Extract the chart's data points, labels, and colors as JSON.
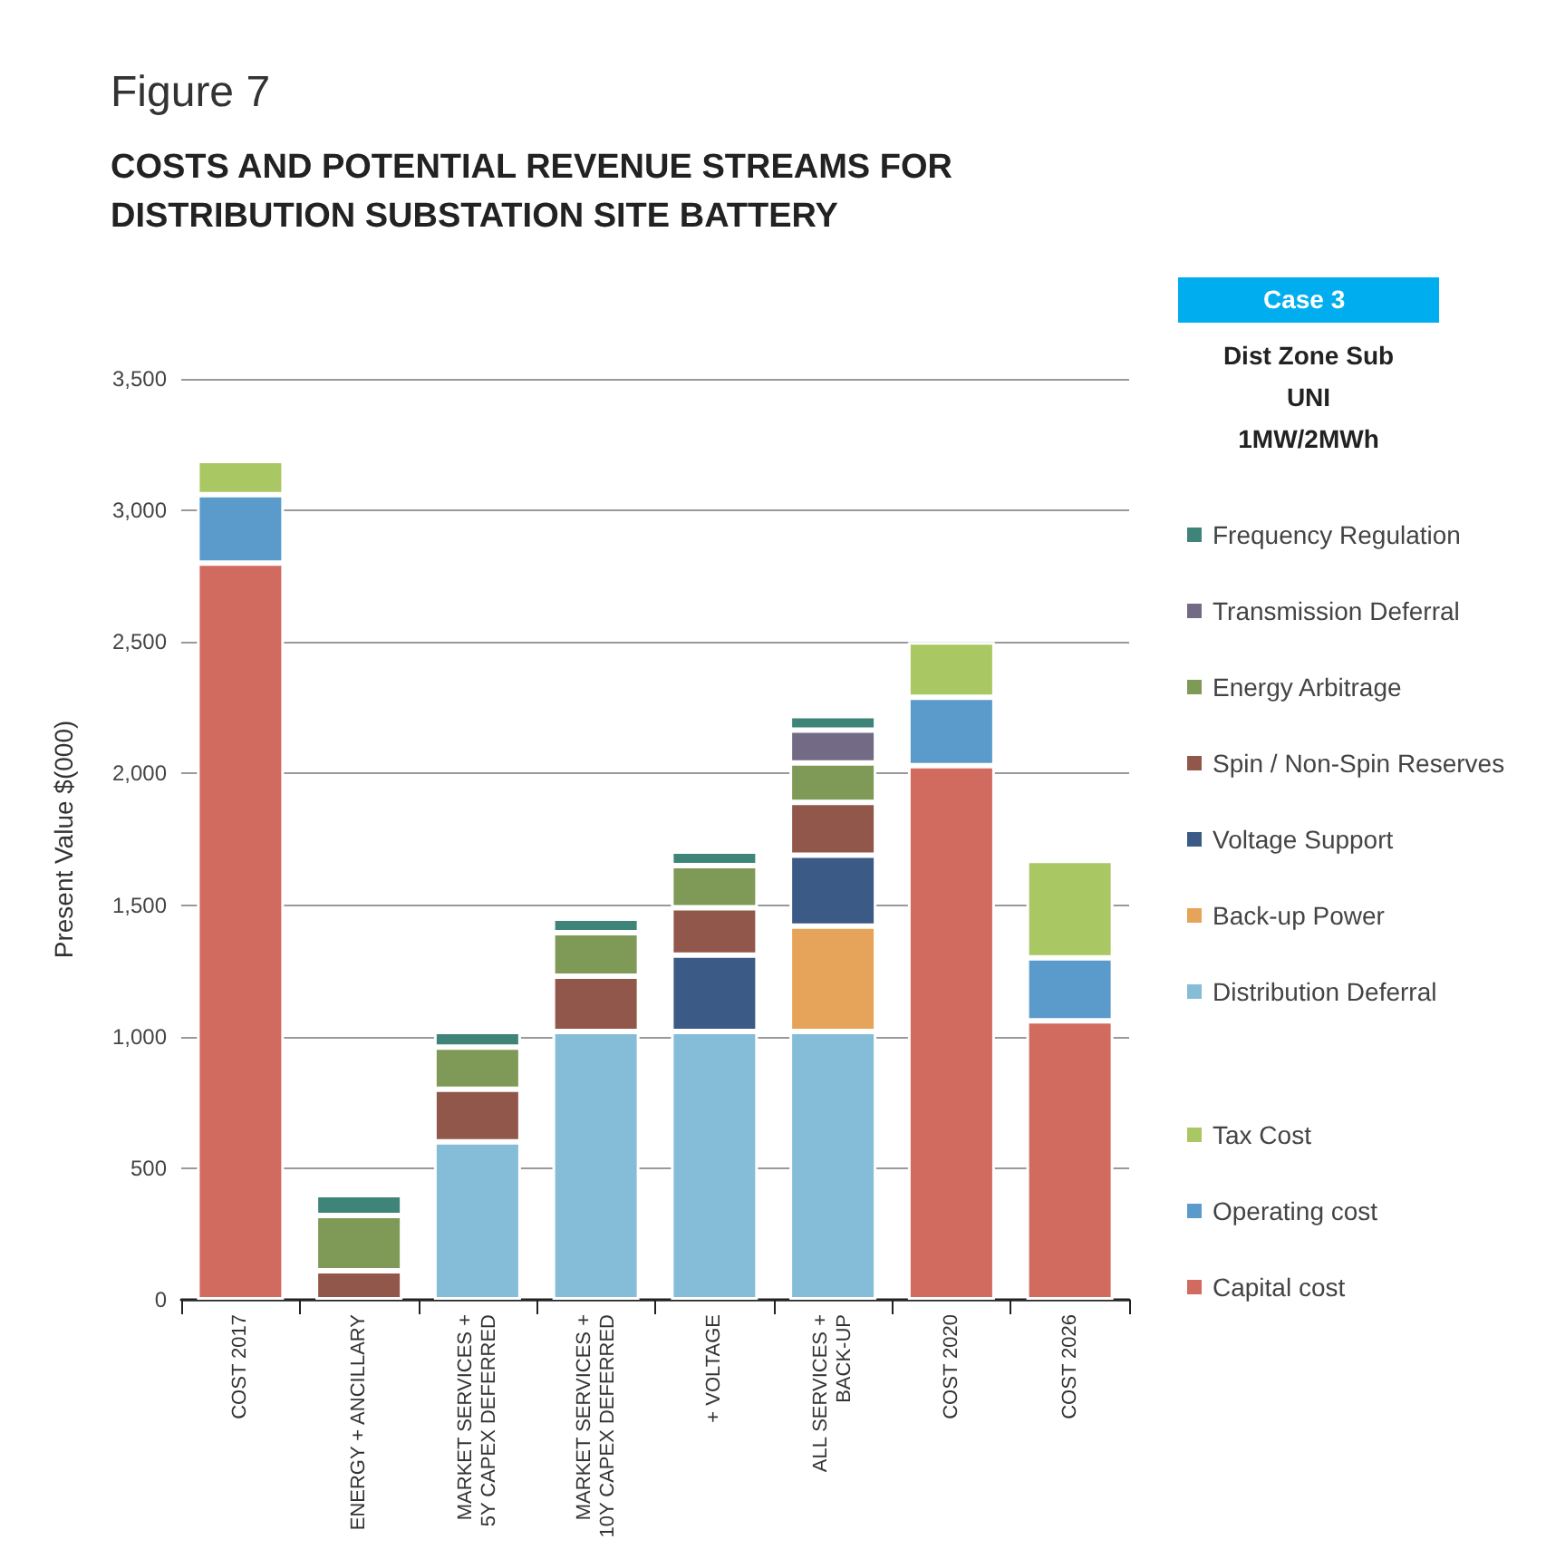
{
  "chart_data": {
    "type": "bar",
    "title": "Figure 7",
    "subtitle": "COSTS AND POTENTIAL REVENUE STREAMS FOR\nDISTRIBUTION SUBSTATION SITE BATTERY",
    "ylabel": "Present Value $(000)",
    "legend_title": "Case 3",
    "annotations": [
      "Dist Zone Sub",
      "UNI",
      "1MW/2MWh"
    ],
    "categories": [
      "COST 2017",
      "ENERGY + ANCILLARY",
      "MARKET SERVICES +\n5Y CAPEX DEFERRED",
      "MARKET SERVICES +\n10Y CAPEX DEFERRED",
      "+ VOLTAGE",
      "ALL SERVICES +\nBACK-UP",
      "COST 2020",
      "COST 2026"
    ],
    "stacked": true,
    "grid": "y",
    "legend": "right",
    "ylim": [
      0,
      3500
    ],
    "yticks": [
      {
        "value": 0,
        "label": "0"
      },
      {
        "value": 500,
        "label": "500"
      },
      {
        "value": 1000,
        "label": "1,000"
      },
      {
        "value": 1500,
        "label": "1,500"
      },
      {
        "value": 2000,
        "label": "2,000"
      },
      {
        "value": 2500,
        "label": "2,500"
      },
      {
        "value": 3000,
        "label": "3,000"
      },
      {
        "value": 3500,
        "label": "3,500"
      }
    ],
    "series": [
      {
        "name": "Capital cost",
        "color": "#d16a5f",
        "values": [
          2800,
          null,
          null,
          null,
          null,
          null,
          2030,
          1060
        ]
      },
      {
        "name": "Operating cost",
        "color": "#5b9bcb",
        "values": [
          260,
          null,
          null,
          null,
          null,
          null,
          260,
          240
        ]
      },
      {
        "name": "Tax Cost",
        "color": "#a9c762",
        "values": [
          130,
          null,
          null,
          null,
          null,
          null,
          210,
          370
        ]
      },
      {
        "name": "Distribution Deferral",
        "color": "#85bdd8",
        "values": [
          null,
          null,
          600,
          1020,
          1020,
          1020,
          null,
          null
        ]
      },
      {
        "name": "Back-up Power",
        "color": "#e5a45a",
        "values": [
          null,
          null,
          null,
          null,
          null,
          400,
          null,
          null
        ]
      },
      {
        "name": "Voltage Support",
        "color": "#3c5a86",
        "values": [
          null,
          null,
          null,
          null,
          290,
          270,
          null,
          null
        ]
      },
      {
        "name": "Spin / Non-Spin Reserves",
        "color": "#92574b",
        "values": [
          null,
          110,
          200,
          210,
          180,
          200,
          null,
          null
        ]
      },
      {
        "name": "Energy Arbitrage",
        "color": "#7f9a56",
        "values": [
          null,
          210,
          160,
          165,
          160,
          150,
          null,
          null
        ]
      },
      {
        "name": "Transmission Deferral",
        "color": "#736a86",
        "values": [
          null,
          null,
          null,
          null,
          null,
          125,
          null,
          null
        ]
      },
      {
        "name": "Frequency Regulation",
        "color": "#3f8478",
        "values": [
          null,
          80,
          60,
          55,
          55,
          55,
          null,
          null
        ]
      }
    ]
  }
}
